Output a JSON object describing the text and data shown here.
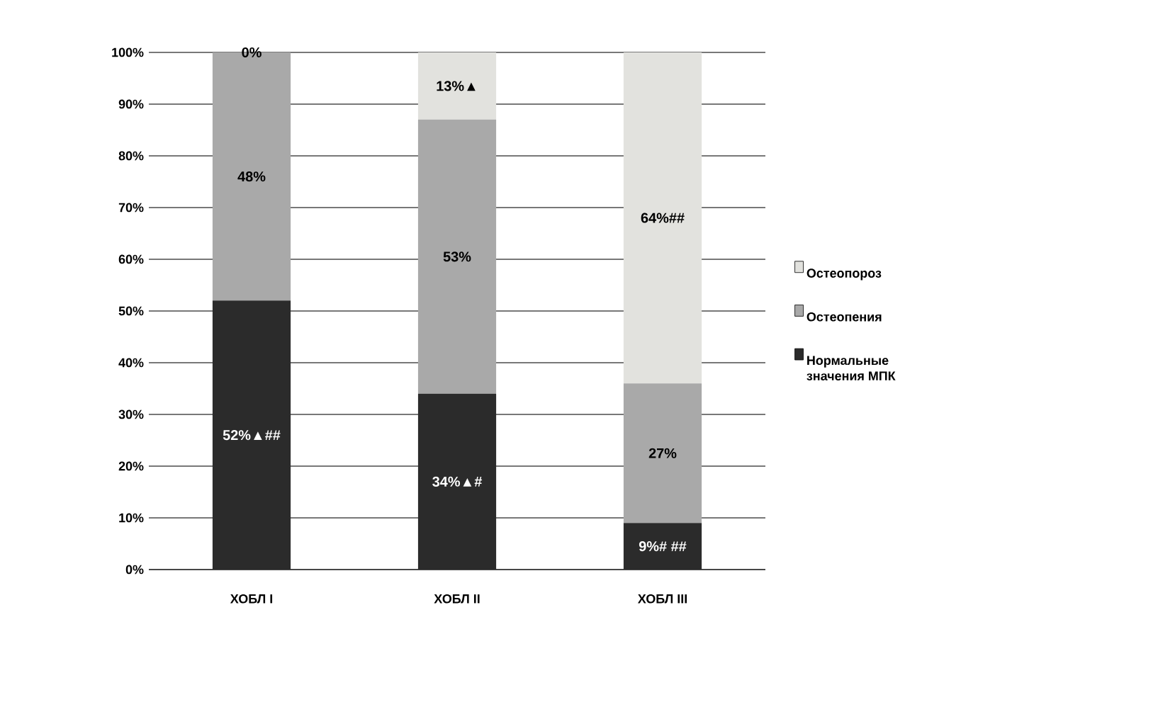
{
  "chart_data": {
    "type": "bar",
    "stacked": true,
    "categories": [
      "ХОБЛ I",
      "ХОБЛ II",
      "ХОБЛ III"
    ],
    "series": [
      {
        "name": "Нормальные значения МПК",
        "color": "#2b2b2b",
        "values": [
          52,
          34,
          9
        ],
        "value_labels": [
          "52%▲##",
          "34%▲#",
          "9%# ##"
        ]
      },
      {
        "name": "Остеопения",
        "color": "#a9a9a9",
        "values": [
          48,
          53,
          27
        ],
        "value_labels": [
          "48%",
          "53%",
          "27%"
        ]
      },
      {
        "name": "Остеопороз",
        "color": "#e2e2de",
        "values": [
          0,
          13,
          64
        ],
        "value_labels": [
          "0%",
          "13%▲",
          "64%##"
        ]
      }
    ],
    "ylim": [
      0,
      100
    ],
    "yticks": [
      {
        "value": 0,
        "label": "0%"
      },
      {
        "value": 10,
        "label": "10%"
      },
      {
        "value": 20,
        "label": "20%"
      },
      {
        "value": 30,
        "label": "30%"
      },
      {
        "value": 40,
        "label": "40%"
      },
      {
        "value": 50,
        "label": "50%"
      },
      {
        "value": 60,
        "label": "60%"
      },
      {
        "value": 70,
        "label": "70%"
      },
      {
        "value": 80,
        "label": "80%"
      },
      {
        "value": 90,
        "label": "90%"
      },
      {
        "value": 100,
        "label": "100%"
      }
    ],
    "grid": "y",
    "legend": "right"
  }
}
